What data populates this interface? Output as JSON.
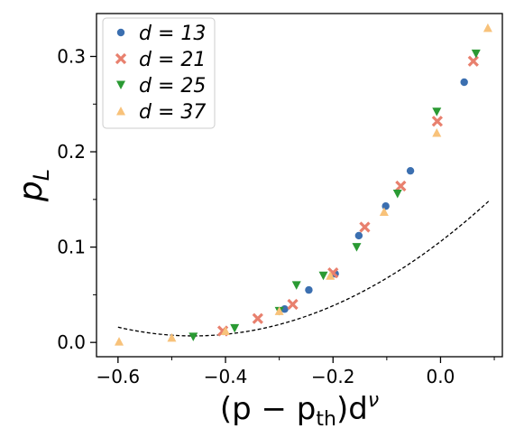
{
  "chart_data": {
    "type": "scatter",
    "xlabel": "(p − p",
    "xlabel_sub": "th",
    "xlabel_tail": ")d",
    "xlabel_sup": "ν",
    "ylabel": "p",
    "ylabel_sub": "L",
    "xlim": [
      -0.64,
      0.115
    ],
    "ylim": [
      -0.015,
      0.345
    ],
    "x_ticks": [
      -0.6,
      -0.4,
      -0.2,
      0.0
    ],
    "x_tick_labels": [
      "−0.6",
      "−0.4",
      "−0.2",
      "0.0"
    ],
    "y_ticks": [
      0.0,
      0.1,
      0.2,
      0.3
    ],
    "y_tick_labels": [
      "0.0",
      "0.1",
      "0.2",
      "0.3"
    ],
    "legend_placement": "top-left",
    "grid": false,
    "series": [
      {
        "name": "d = 13",
        "marker": "circle",
        "color": "#3b6fb0",
        "points": [
          [
            -0.29,
            0.035
          ],
          [
            -0.245,
            0.055
          ],
          [
            -0.196,
            0.072
          ],
          [
            -0.152,
            0.112
          ],
          [
            -0.102,
            0.143
          ],
          [
            -0.056,
            0.18
          ],
          [
            0.044,
            0.273
          ]
        ]
      },
      {
        "name": "d = 21",
        "marker": "x",
        "color": "#e8806e",
        "points": [
          [
            -0.405,
            0.012
          ],
          [
            -0.34,
            0.025
          ],
          [
            -0.275,
            0.04
          ],
          [
            -0.2,
            0.073
          ],
          [
            -0.141,
            0.121
          ],
          [
            -0.074,
            0.164
          ],
          [
            -0.006,
            0.232
          ],
          [
            0.061,
            0.295
          ]
        ]
      },
      {
        "name": "d = 25",
        "marker": "triangle-down",
        "color": "#2a9a33",
        "points": [
          [
            -0.46,
            0.006
          ],
          [
            -0.383,
            0.015
          ],
          [
            -0.3,
            0.033
          ],
          [
            -0.268,
            0.06
          ],
          [
            -0.218,
            0.07
          ],
          [
            -0.156,
            0.1
          ],
          [
            -0.08,
            0.156
          ],
          [
            -0.007,
            0.242
          ],
          [
            0.066,
            0.303
          ]
        ]
      },
      {
        "name": "d = 37",
        "marker": "triangle-up",
        "color": "#f8c27a",
        "points": [
          [
            -0.598,
            0.001
          ],
          [
            -0.5,
            0.005
          ],
          [
            -0.4,
            0.012
          ],
          [
            -0.3,
            0.033
          ],
          [
            -0.205,
            0.07
          ],
          [
            -0.105,
            0.137
          ],
          [
            -0.007,
            0.22
          ],
          [
            0.088,
            0.33
          ]
        ]
      }
    ],
    "fit_curve": {
      "style": "dashed",
      "color": "#000000",
      "a": 0.00684,
      "b": 0.468,
      "x0": -0.46,
      "x_range": [
        -0.6,
        0.09
      ]
    }
  }
}
